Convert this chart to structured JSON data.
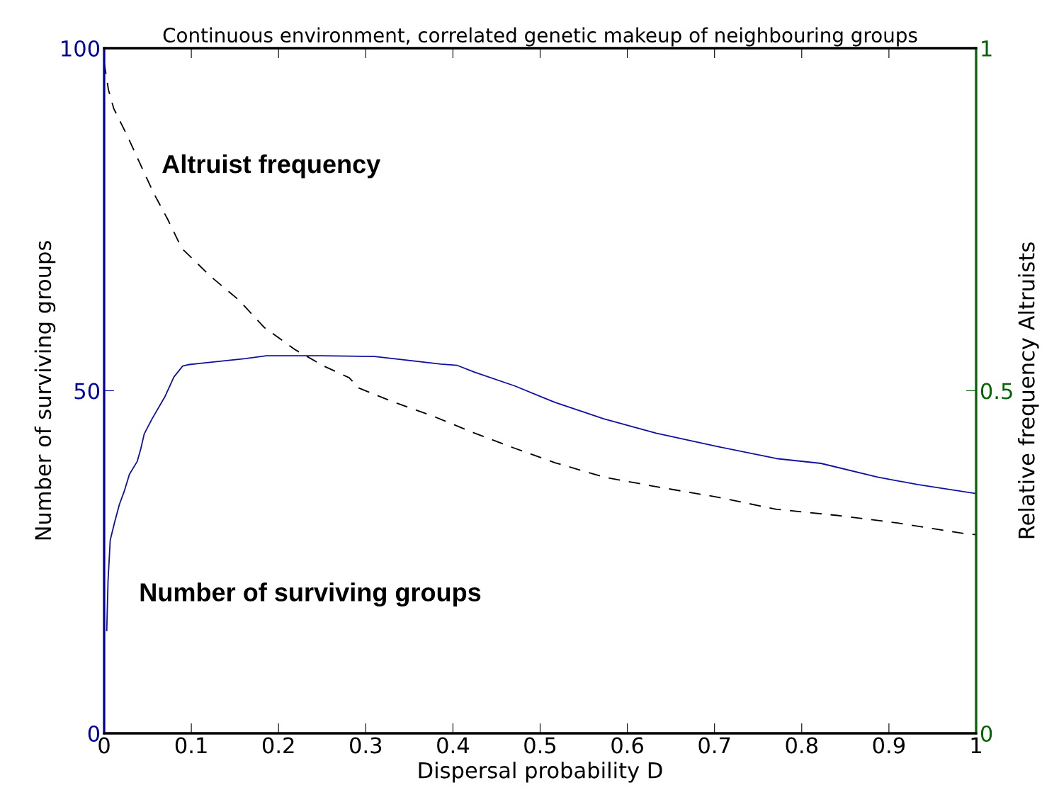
{
  "chart_data": {
    "type": "line",
    "title": "Continuous environment, correlated genetic makeup of neighbouring groups",
    "xlabel": "Dispersal probability D",
    "ylabel": "Number of surviving groups",
    "y2label": "Relative frequency Altruists",
    "xlim": [
      0,
      1
    ],
    "xticks": [
      0,
      0.1,
      0.2,
      0.3,
      0.4,
      0.5,
      0.6,
      0.7,
      0.8,
      0.9,
      1
    ],
    "ylim": [
      0,
      100
    ],
    "yticks": [
      0,
      50,
      100
    ],
    "y2lim": [
      0,
      1
    ],
    "y2ticks": [
      0,
      0.5,
      1
    ],
    "grid": false,
    "legend": false,
    "series": [
      {
        "name": "Number of surviving groups",
        "color": "#1010a0",
        "line_style": "solid",
        "axis": "y",
        "x": [
          0.003,
          0.0045,
          0.007,
          0.012,
          0.0175,
          0.023,
          0.029,
          0.038,
          0.042,
          0.046,
          0.055,
          0.07,
          0.08,
          0.09,
          0.096,
          0.11,
          0.133,
          0.162,
          0.186,
          0.25,
          0.31,
          0.386,
          0.405,
          0.425,
          0.471,
          0.517,
          0.573,
          0.633,
          0.702,
          0.771,
          0.822,
          0.887,
          0.933,
          1
        ],
        "values": [
          15,
          22.3,
          28.2,
          30.8,
          33.4,
          35.3,
          37.8,
          39.7,
          41.5,
          43.7,
          45.9,
          49.2,
          52.0,
          53.6,
          53.8,
          54.0,
          54.3,
          54.7,
          55.1,
          55.1,
          55.0,
          53.9,
          53.7,
          52.7,
          50.7,
          48.3,
          45.9,
          43.8,
          41.9,
          40.1,
          39.4,
          37.4,
          36.3,
          35.0
        ]
      },
      {
        "name": "Altruist frequency",
        "color": "#000000",
        "line_style": "dashed",
        "axis": "y2",
        "x": [
          0,
          0.005,
          0.011,
          0.027,
          0.041,
          0.057,
          0.073,
          0.089,
          0.122,
          0.154,
          0.184,
          0.219,
          0.252,
          0.281,
          0.292,
          0.333,
          0.379,
          0.425,
          0.471,
          0.517,
          0.573,
          0.633,
          0.702,
          0.771,
          0.841,
          0.91,
          0.989,
          1
        ],
        "values": [
          0.979,
          0.939,
          0.912,
          0.871,
          0.832,
          0.788,
          0.75,
          0.708,
          0.667,
          0.633,
          0.592,
          0.56,
          0.536,
          0.519,
          0.504,
          0.483,
          0.462,
          0.438,
          0.416,
          0.395,
          0.374,
          0.36,
          0.345,
          0.327,
          0.318,
          0.307,
          0.291,
          0.29
        ]
      }
    ]
  }
}
